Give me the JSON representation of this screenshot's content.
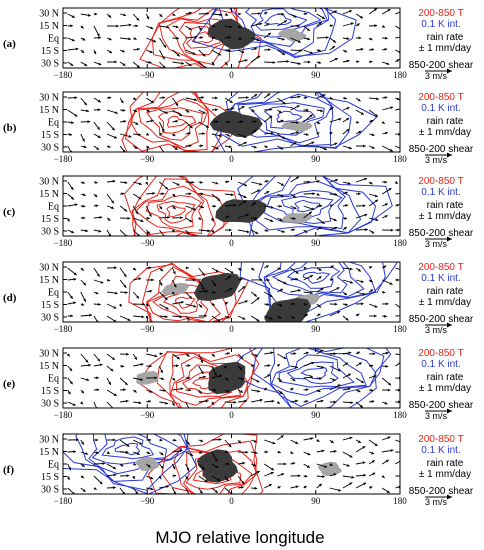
{
  "figure": {
    "xlabel": "MJO relative longitude",
    "x_ticks": [
      -180,
      -90,
      0,
      90,
      180
    ],
    "x_tick_labels": [
      "−180",
      "−90",
      "0",
      "90",
      "180"
    ],
    "y_tick_labels": [
      "30 N",
      "15 N",
      "Eq",
      "15 S",
      "30 S"
    ],
    "legend": {
      "temp_label": "200-850 T",
      "temp_interval": "0.1 K int.",
      "rain_label": "rain rate",
      "rain_interval": "± 1 mm/day",
      "shear_label": "850-200 shear",
      "shear_scale": "3 m/s"
    },
    "colors": {
      "warm": "#e8251c",
      "cold": "#2a3ad6",
      "rain_pos": "#3a3a3a",
      "rain_neg": "#a6a6a6",
      "vector": "#000000"
    }
  },
  "chart_data": [
    {
      "panel_label": "(a)",
      "type": "contour-vector-map",
      "xlim": [
        -180,
        180
      ],
      "ylim": [
        -30,
        30
      ],
      "rain_positive": [
        {
          "x": 0,
          "y": 4
        }
      ],
      "rain_negative": [
        {
          "x": 65,
          "y": 3
        }
      ],
      "warm_center": {
        "x": -30,
        "y": 0
      },
      "cold_center": {
        "x": 50,
        "y": 18
      }
    },
    {
      "panel_label": "(b)",
      "type": "contour-vector-map",
      "xlim": [
        -180,
        180
      ],
      "ylim": [
        -30,
        30
      ],
      "rain_positive": [
        {
          "x": 5,
          "y": -2
        }
      ],
      "rain_negative": [
        {
          "x": 70,
          "y": -4
        }
      ],
      "warm_center": {
        "x": -60,
        "y": 0
      },
      "cold_center": {
        "x": 60,
        "y": 5
      }
    },
    {
      "panel_label": "(c)",
      "type": "contour-vector-map",
      "xlim": [
        -180,
        180
      ],
      "ylim": [
        -30,
        30
      ],
      "rain_positive": [
        {
          "x": 10,
          "y": -5
        }
      ],
      "rain_negative": [
        {
          "x": 70,
          "y": -12
        }
      ],
      "warm_center": {
        "x": -60,
        "y": -5
      },
      "cold_center": {
        "x": 80,
        "y": 0
      }
    },
    {
      "panel_label": "(d)",
      "type": "contour-vector-map",
      "xlim": [
        -180,
        180
      ],
      "ylim": [
        -30,
        30
      ],
      "rain_positive": [
        {
          "x": -15,
          "y": 5
        },
        {
          "x": 60,
          "y": -20
        }
      ],
      "rain_negative": [
        {
          "x": -60,
          "y": 3
        },
        {
          "x": 80,
          "y": -8
        }
      ],
      "warm_center": {
        "x": -50,
        "y": -10
      },
      "cold_center": {
        "x": 90,
        "y": 15
      }
    },
    {
      "panel_label": "(e)",
      "type": "contour-vector-map",
      "xlim": [
        -180,
        180
      ],
      "ylim": [
        -30,
        30
      ],
      "rain_positive": [
        {
          "x": -5,
          "y": 0
        }
      ],
      "rain_negative": [
        {
          "x": -90,
          "y": 0
        }
      ],
      "warm_center": {
        "x": -30,
        "y": -5
      },
      "cold_center": {
        "x": 90,
        "y": 5
      }
    },
    {
      "panel_label": "(f)",
      "type": "contour-vector-map",
      "xlim": [
        -180,
        180
      ],
      "ylim": [
        -30,
        30
      ],
      "rain_positive": [
        {
          "x": -15,
          "y": -2
        }
      ],
      "rain_negative": [
        {
          "x": -90,
          "y": 0
        },
        {
          "x": 105,
          "y": -5
        }
      ],
      "warm_center": {
        "x": -20,
        "y": -10
      },
      "cold_center": {
        "x": -110,
        "y": 15
      }
    }
  ]
}
